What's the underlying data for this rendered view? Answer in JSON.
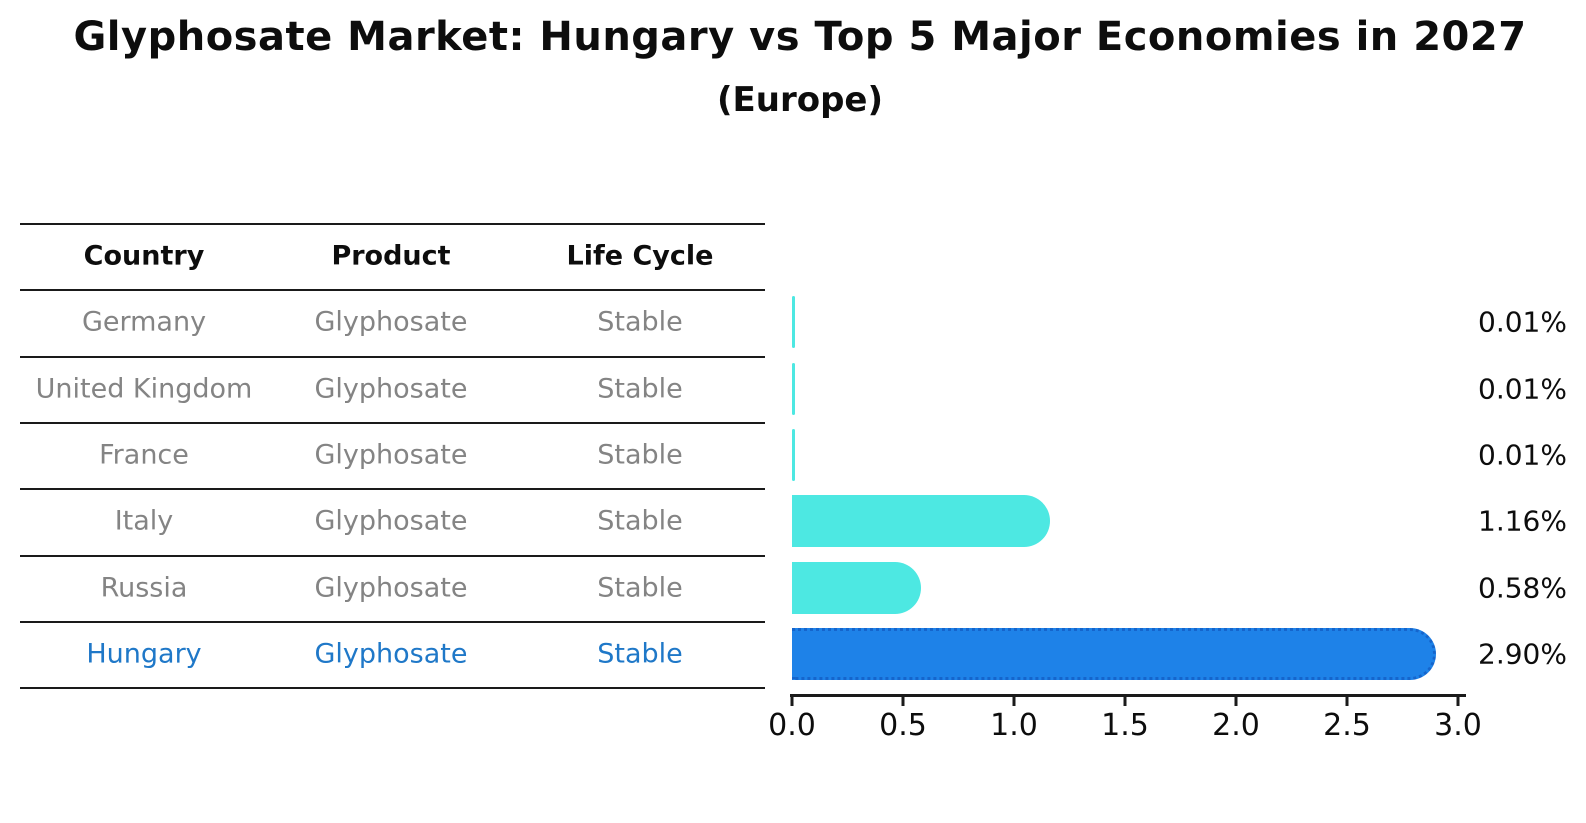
{
  "title": "Glyphosate Market: Hungary vs Top 5 Major Economies in 2027",
  "subtitle": "(Europe)",
  "table": {
    "headers": [
      "Country",
      "Product",
      "Life Cycle"
    ],
    "rows": [
      {
        "country": "Germany",
        "product": "Glyphosate",
        "life_cycle": "Stable",
        "value": 0.01,
        "pct_label": "0.01%",
        "highlight": false
      },
      {
        "country": "United Kingdom",
        "product": "Glyphosate",
        "life_cycle": "Stable",
        "value": 0.01,
        "pct_label": "0.01%",
        "highlight": false
      },
      {
        "country": "France",
        "product": "Glyphosate",
        "life_cycle": "Stable",
        "value": 0.01,
        "pct_label": "0.01%",
        "highlight": false
      },
      {
        "country": "Italy",
        "product": "Glyphosate",
        "life_cycle": "Stable",
        "value": 1.16,
        "pct_label": "1.16%",
        "highlight": false
      },
      {
        "country": "Russia",
        "product": "Glyphosate",
        "life_cycle": "Stable",
        "value": 0.58,
        "pct_label": "0.58%",
        "highlight": false
      },
      {
        "country": "Hungary",
        "product": "Glyphosate",
        "life_cycle": "Stable",
        "value": 2.9,
        "pct_label": "2.90%",
        "highlight": true
      }
    ]
  },
  "chart_data": {
    "type": "bar",
    "orientation": "horizontal",
    "title": "Glyphosate Market: Hungary vs Top 5 Major Economies in 2027",
    "subtitle": "(Europe)",
    "categories": [
      "Germany",
      "United Kingdom",
      "France",
      "Italy",
      "Russia",
      "Hungary"
    ],
    "values": [
      0.01,
      0.01,
      0.01,
      1.16,
      0.58,
      2.9
    ],
    "bar_labels": [
      "0.01%",
      "0.01%",
      "0.01%",
      "1.16%",
      "0.58%",
      "2.90%"
    ],
    "xlabel": "",
    "ylabel": "",
    "xlim": [
      0.0,
      3.0
    ],
    "xticks": [
      0.0,
      0.5,
      1.0,
      1.5,
      2.0,
      2.5,
      3.0
    ],
    "xtick_labels": [
      "0.0",
      "0.5",
      "1.0",
      "1.5",
      "2.0",
      "2.5",
      "3.0"
    ],
    "grid": false,
    "legend": false,
    "highlight_index": 5,
    "bar_color_default": "#4DE8E2",
    "bar_color_highlight": "#1E82E8"
  },
  "colors": {
    "background": "#ffffff",
    "text_primary": "#0d0d0d",
    "text_muted": "#848484",
    "highlight_text": "#1F78C8",
    "bar_default": "#4DE8E2",
    "bar_highlight": "#1E82E8",
    "axis": "#1a1a1a"
  }
}
